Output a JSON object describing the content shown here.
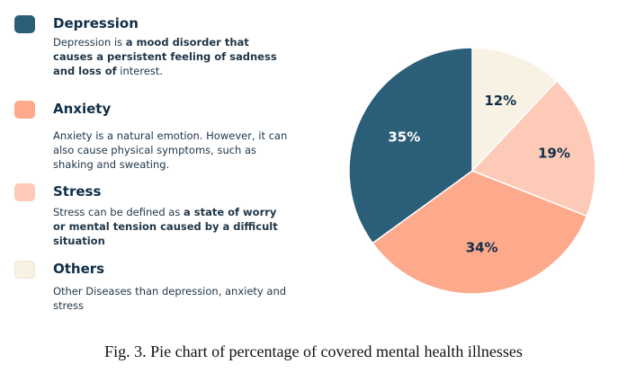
{
  "legend": [
    {
      "name": "Depression",
      "color": "#2b5e78",
      "desc": [
        {
          "text": "Depression is ",
          "bold": false
        },
        {
          "text": "a mood disorder that causes a persistent feeling of sadness and loss of",
          "bold": true
        },
        {
          "text": " interest.",
          "bold": false
        }
      ]
    },
    {
      "name": "Anxiety",
      "color": "#fda98c",
      "desc": [
        {
          "text": "Anxiety is a natural emotion. However, it can also cause physical symptoms, such as shaking and sweating.",
          "bold": false
        }
      ]
    },
    {
      "name": "Stress",
      "color": "#fdcab8",
      "desc": [
        {
          "text": "Stress can be defined as ",
          "bold": false
        },
        {
          "text": "a state of worry or mental tension caused by a difficult situation",
          "bold": true
        }
      ]
    },
    {
      "name": "Others",
      "color": "#f8f2e4",
      "desc": [
        {
          "text": "Other Diseases than depression, anxiety and stress",
          "bold": false
        }
      ]
    }
  ],
  "chart_data": {
    "type": "pie",
    "start": "12 o'clock",
    "direction": "clockwise",
    "slices": [
      {
        "label": "Others",
        "value": 12,
        "display": "12%",
        "color": "#f8f2e4"
      },
      {
        "label": "Stress",
        "value": 19,
        "display": "19%",
        "color": "#fdcab8"
      },
      {
        "label": "Anxiety",
        "value": 34,
        "display": "34%",
        "color": "#fda98c"
      },
      {
        "label": "Depression",
        "value": 35,
        "display": "35%",
        "color": "#2b5e78"
      }
    ]
  },
  "caption": "Fig. 3. Pie chart of percentage of covered mental health illnesses"
}
